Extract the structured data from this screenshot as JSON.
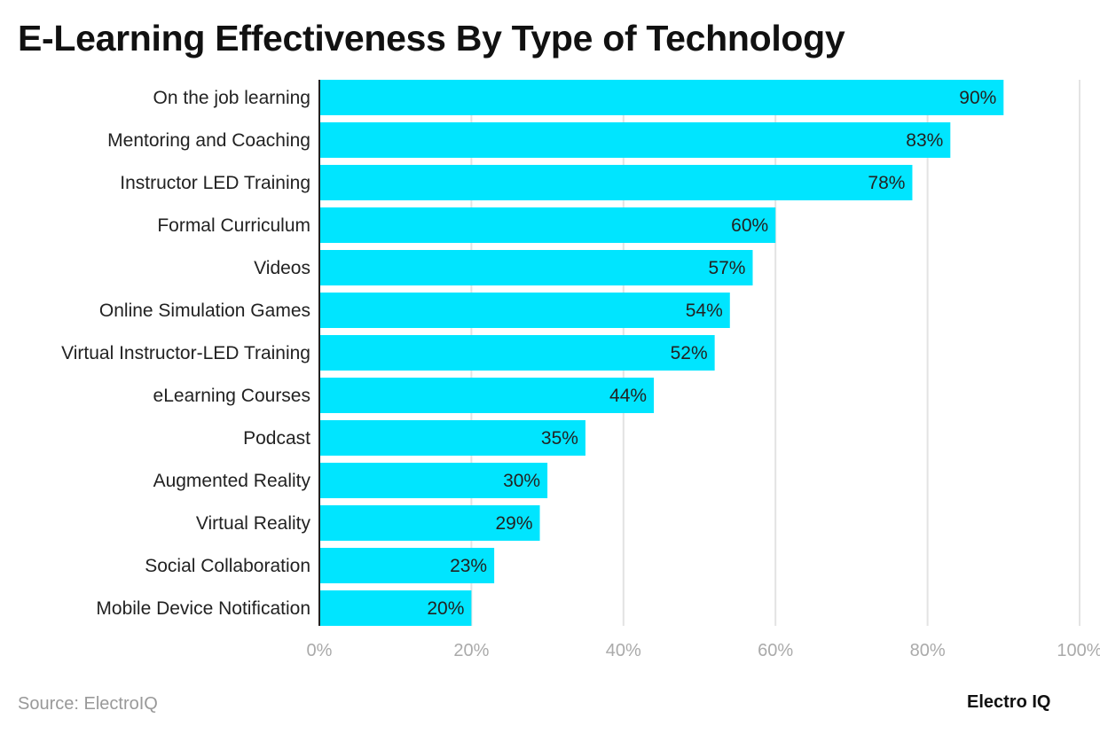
{
  "chart_data": {
    "type": "bar",
    "orientation": "horizontal",
    "title": "E-Learning Effectiveness By Type of Technology",
    "categories": [
      "On the job learning",
      "Mentoring and Coaching",
      "Instructor LED Training",
      "Formal Curriculum",
      "Videos",
      "Online Simulation Games",
      "Virtual Instructor-LED Training",
      "eLearning Courses",
      "Podcast",
      "Augmented Reality",
      "Virtual Reality",
      "Social Collaboration",
      "Mobile Device Notification"
    ],
    "values": [
      90,
      83,
      78,
      60,
      57,
      54,
      52,
      44,
      35,
      30,
      29,
      23,
      20
    ],
    "data_labels": [
      "90%",
      "83%",
      "78%",
      "60%",
      "57%",
      "54%",
      "52%",
      "44%",
      "35%",
      "30%",
      "29%",
      "23%",
      "20%"
    ],
    "xlim": [
      0,
      100
    ],
    "x_ticks": [
      0,
      20,
      40,
      60,
      80,
      100
    ],
    "x_tick_labels": [
      "0%",
      "20%",
      "40%",
      "60%",
      "80%",
      "100%"
    ],
    "grid": true,
    "bar_color": "#00e5ff"
  },
  "footer": {
    "source": "Source: ElectroIQ",
    "logo": "Electro IQ"
  }
}
